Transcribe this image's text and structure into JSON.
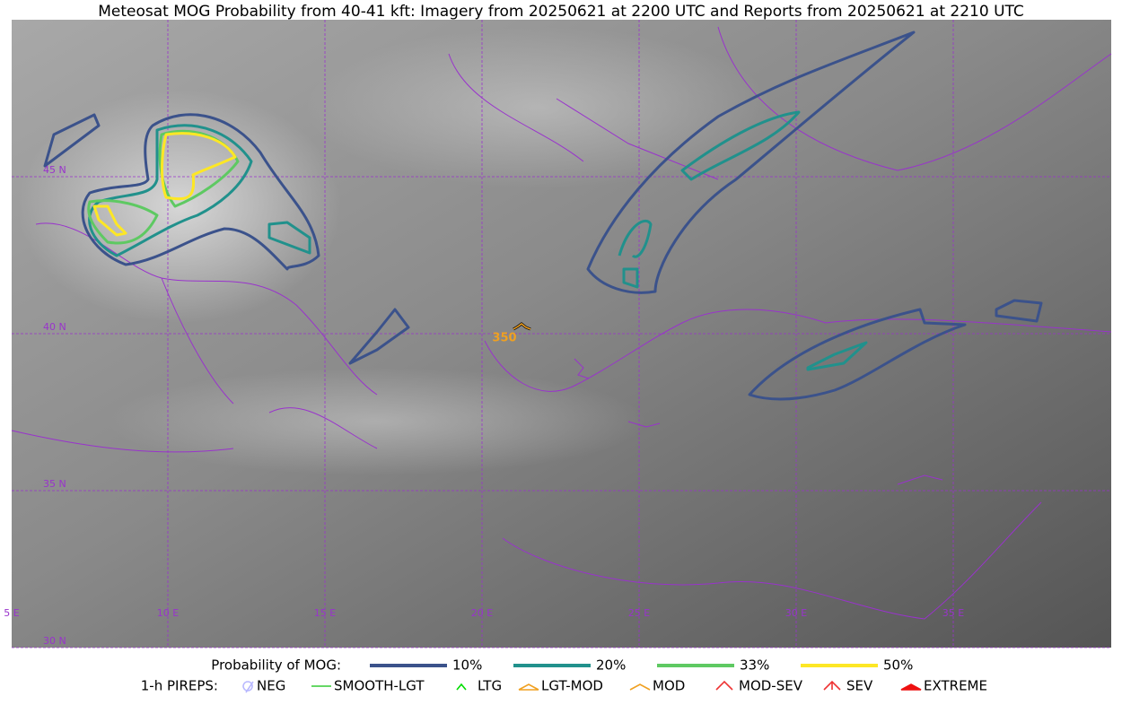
{
  "title": "Meteosat MOG Probability from 40-41 kft: Imagery from 20250621 at 2200 UTC and Reports from 20250621 at 2210 UTC",
  "map": {
    "lat_labels": [
      "45 N",
      "40 N",
      "35 N",
      "30 N"
    ],
    "lon_labels": [
      "5 E",
      "10 E",
      "15 E",
      "20 E",
      "25 E",
      "30 E",
      "35 E"
    ],
    "pirep_label": "350"
  },
  "legend": {
    "probability": {
      "label": "Probability of MOG:",
      "items": [
        {
          "label": "10%",
          "color": "#3b528b"
        },
        {
          "label": "20%",
          "color": "#21918c"
        },
        {
          "label": "33%",
          "color": "#5ec962"
        },
        {
          "label": "50%",
          "color": "#fde725"
        }
      ]
    },
    "pireps": {
      "label": "1-h PIREPS:",
      "items": [
        {
          "label": "NEG",
          "color": "#b8b8ff"
        },
        {
          "label": "SMOOTH-LGT",
          "color": "#33cc33"
        },
        {
          "label": "LTG",
          "color": "#00dd00"
        },
        {
          "label": "LGT-MOD",
          "color": "#f0a020"
        },
        {
          "label": "MOD",
          "color": "#f0a020"
        },
        {
          "label": "MOD-SEV",
          "color": "#ee3333"
        },
        {
          "label": "SEV",
          "color": "#ee3333"
        },
        {
          "label": "EXTREME",
          "color": "#ee1111"
        }
      ]
    }
  }
}
